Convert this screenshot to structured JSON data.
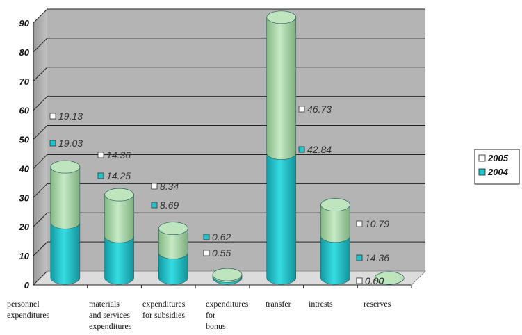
{
  "chart_data": {
    "type": "bar",
    "stacked": true,
    "style": "3d-cylinder",
    "categories": [
      "personnel expenditures",
      "materials and services expenditures",
      "expenditures for subsidies",
      "expenditures for bonus",
      "transfer",
      "intrests",
      "reserves"
    ],
    "x_tick_labels": [
      [
        "personnel",
        "expenditures"
      ],
      [
        "materials",
        "and services",
        "expenditures"
      ],
      [
        "expenditures",
        "for subsidies"
      ],
      [
        "expenditures",
        "for",
        "bonus"
      ],
      [
        "transfer"
      ],
      [
        "intrests"
      ],
      [
        "reserves"
      ]
    ],
    "series": [
      {
        "name": "2004",
        "values": [
          19.03,
          14.25,
          8.69,
          0.62,
          42.84,
          14.36,
          0.0
        ],
        "labels": [
          "19.03",
          "14.25",
          "8.69",
          "0.62",
          "42.84",
          "14.36",
          "0.00"
        ],
        "color": "#22c4cc"
      },
      {
        "name": "2005",
        "values": [
          19.13,
          14.36,
          8.34,
          0.55,
          46.73,
          10.79,
          0.0
        ],
        "labels": [
          "19.13",
          "14.36",
          "8.34",
          "0.55",
          "46.73",
          "10.79",
          "0.00"
        ],
        "color": "#a9d8a9"
      }
    ],
    "y_ticks": [
      "0",
      "10",
      "20",
      "30",
      "40",
      "50",
      "60",
      "70",
      "80",
      "90"
    ],
    "ylim": [
      0,
      90
    ],
    "grid": true,
    "legend": {
      "placement": "right",
      "entries": [
        "2005",
        "2004"
      ]
    },
    "colors": {
      "wall": "#b4b4b4",
      "wall_side": "#8f8f8f",
      "grid": "#222222",
      "floor": "#dcdcdc"
    }
  }
}
